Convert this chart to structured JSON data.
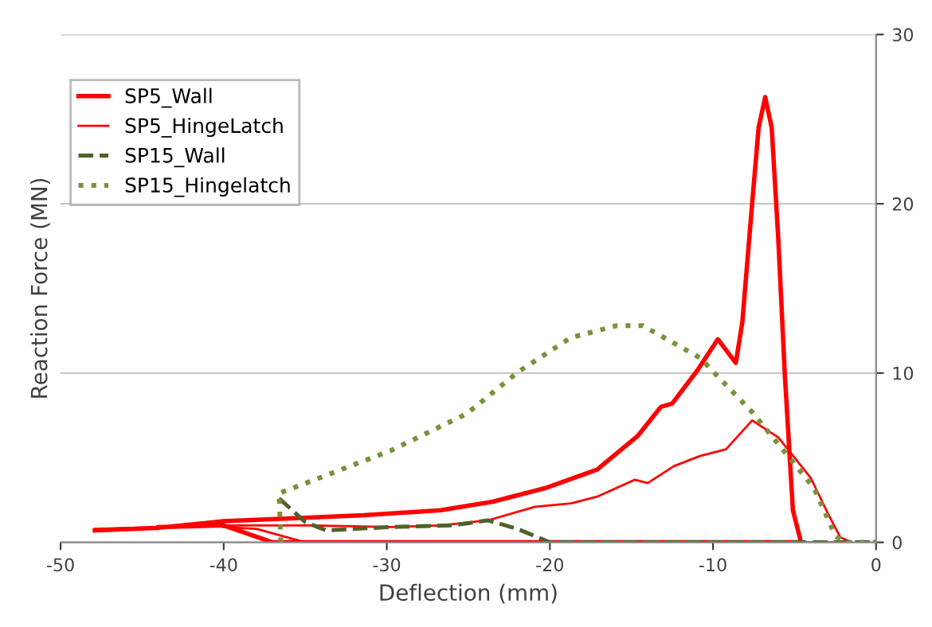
{
  "chart_data": {
    "type": "line",
    "xlabel": "Deflection (mm)",
    "ylabel": "Reaction Force (MN)",
    "xlim": [
      -50,
      0
    ],
    "xticks": [
      -50,
      -40,
      -30,
      -20,
      -10,
      0
    ],
    "ylim": [
      0,
      30
    ],
    "yticks": [
      0,
      10,
      20,
      30
    ],
    "grid": "y",
    "legend": "top left",
    "series": [
      {
        "name": "SP5_Wall",
        "color": "#ff0000",
        "line_style": "solid",
        "x": [
          -47.9,
          -44.1,
          -40,
          -36.2,
          -31.4,
          -26.7,
          -23.5,
          -20.3,
          -17.1,
          -14.6,
          -13.2,
          -12.5,
          -11,
          -9.7,
          -8.6,
          -8.2,
          -7.6,
          -7.2,
          -6.8,
          -6.4,
          -6.0,
          -5.6,
          -5.1,
          -4.6,
          -20,
          -37,
          -40,
          -44
        ],
        "values": [
          0.7,
          0.85,
          1.25,
          1.4,
          1.6,
          1.9,
          2.4,
          3.2,
          4.3,
          6.3,
          8.0,
          8.2,
          10.1,
          12.0,
          10.6,
          13,
          20,
          24.5,
          26.3,
          24.5,
          18,
          10,
          1.9,
          0,
          0,
          0,
          1.0,
          0.9
        ]
      },
      {
        "name": "SP5_HingeLatch",
        "color": "#ff0000",
        "line_style": "solid",
        "x": [
          -47.9,
          -44,
          -40,
          -34.6,
          -29.8,
          -26.7,
          -23.8,
          -20.9,
          -18.7,
          -17.1,
          -14.8,
          -14,
          -12.4,
          -10.8,
          -9.2,
          -7.6,
          -6,
          -5,
          -4,
          -3,
          -2.2,
          -1.5,
          -20,
          -35,
          -38,
          -40
        ],
        "values": [
          0.8,
          0.9,
          1.0,
          1.0,
          0.9,
          1.0,
          1.3,
          2.1,
          2.3,
          2.7,
          3.7,
          3.5,
          4.5,
          5.1,
          5.5,
          7.2,
          6.2,
          5,
          3.8,
          1.8,
          0.3,
          0,
          0,
          0,
          0.8,
          0.9
        ]
      },
      {
        "name": "SP15_Wall",
        "color": "#4f6228",
        "line_style": "dashed",
        "x": [
          -36.6,
          -35,
          -33.7,
          -30,
          -26,
          -23.8,
          -22,
          -20,
          -10,
          0
        ],
        "values": [
          2.6,
          1.2,
          0.7,
          0.9,
          1.0,
          1.3,
          0.8,
          0,
          0,
          0
        ]
      },
      {
        "name": "SP15_Hingelatch",
        "color": "#76923c",
        "line_style": "dotted",
        "x": [
          -36.5,
          -36.6,
          -29.8,
          -25.1,
          -21.9,
          -18.7,
          -15.9,
          -14.3,
          -10.8,
          -7.6,
          -5.4,
          -3.8,
          -2.5,
          -2,
          0
        ],
        "values": [
          0,
          2.9,
          5.4,
          7.6,
          10.1,
          12.1,
          12.8,
          12.8,
          10.9,
          7.7,
          5.1,
          3.2,
          0.4,
          0,
          0
        ]
      }
    ]
  }
}
